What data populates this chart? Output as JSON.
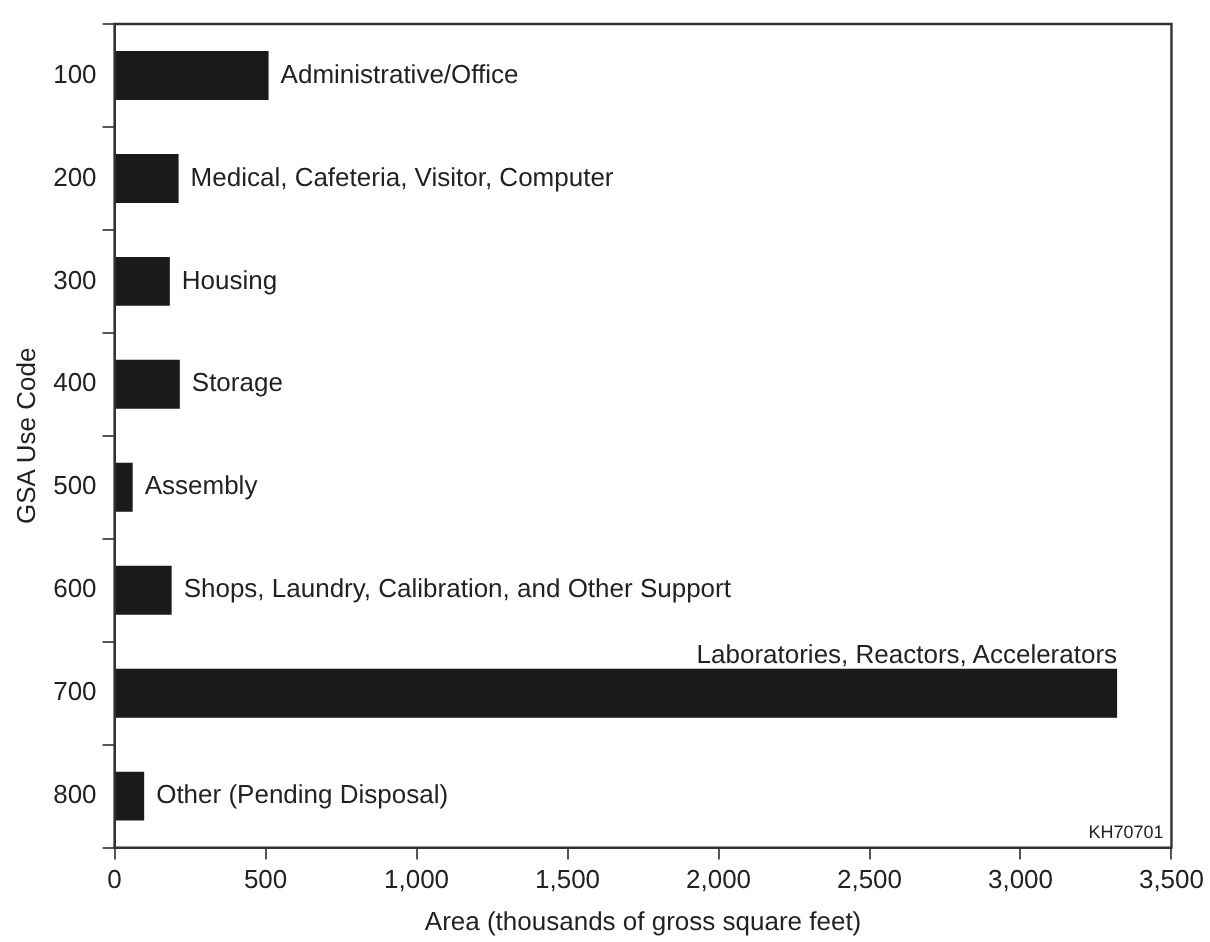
{
  "chart_data": {
    "type": "bar",
    "orientation": "horizontal",
    "xlabel": "Area (thousands of gross square feet)",
    "ylabel": "GSA Use Code",
    "categories": [
      "100",
      "200",
      "300",
      "400",
      "500",
      "600",
      "700",
      "800"
    ],
    "values": [
      510,
      212,
      183,
      216,
      60,
      189,
      3320,
      98
    ],
    "color": "#1a1a1a",
    "xlim": [
      0,
      3500
    ],
    "xticks": [
      0,
      {
        "value": 500,
        "label": "500"
      },
      {
        "value": 1000,
        "label": "1,000"
      },
      {
        "value": 1500,
        "label": "1,500"
      },
      {
        "value": 2000,
        "label": "2,000"
      },
      {
        "value": 2500,
        "label": "2,500"
      },
      {
        "value": 3000,
        "label": "3,000"
      },
      {
        "value": 3500,
        "label": "3,500"
      }
    ],
    "grid": false,
    "legend": false,
    "annotations": [
      {
        "text": "Administrative/Office",
        "x": 510,
        "y": "100"
      },
      {
        "text": "Medical, Cafeteria, Visitor, Computer",
        "x": 212,
        "y": "200"
      },
      {
        "text": "Housing",
        "x": 183,
        "y": "300"
      },
      {
        "text": "Storage",
        "x": 216,
        "y": "400"
      },
      {
        "text": "Assembly",
        "x": 60,
        "y": "500"
      },
      {
        "text": "Shops, Laundry, Calibration, and Other Support",
        "x": 189,
        "y": "600"
      },
      {
        "text": "Laboratories, Reactors, Accelerators",
        "x": 3320,
        "y": "700"
      },
      {
        "text": "Other (Pending Disposal)",
        "x": 98,
        "y": "800"
      },
      "KH70701"
    ]
  }
}
